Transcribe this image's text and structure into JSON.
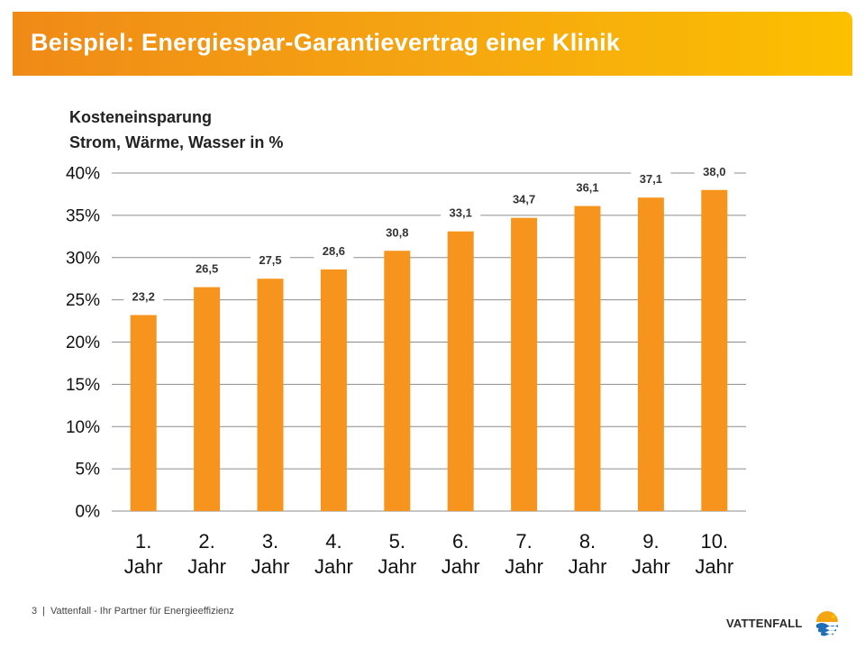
{
  "header": {
    "title": "Beispiel: Energiespar-Garantievertrag einer Klinik"
  },
  "subtitle": {
    "line1": "Kosteneinsparung",
    "line2": "Strom, Wärme, Wasser in %"
  },
  "chart_data": {
    "type": "bar",
    "categories": [
      [
        "1.",
        "Jahr"
      ],
      [
        "2.",
        "Jahr"
      ],
      [
        "3.",
        "Jahr"
      ],
      [
        "4.",
        "Jahr"
      ],
      [
        "5.",
        "Jahr"
      ],
      [
        "6.",
        "Jahr"
      ],
      [
        "7.",
        "Jahr"
      ],
      [
        "8.",
        "Jahr"
      ],
      [
        "9.",
        "Jahr"
      ],
      [
        "10.",
        "Jahr"
      ]
    ],
    "values": [
      23.2,
      26.5,
      27.5,
      28.6,
      30.8,
      33.1,
      34.7,
      36.1,
      37.1,
      38.0
    ],
    "data_labels": [
      "23,2",
      "26,5",
      "27,5",
      "28,6",
      "30,8",
      "33,1",
      "34,7",
      "36,1",
      "37,1",
      "38,0"
    ],
    "ylim": [
      0,
      40
    ],
    "yticks": [
      0,
      5,
      10,
      15,
      20,
      25,
      30,
      35,
      40
    ],
    "ytick_labels": [
      "0%",
      "5%",
      "10%",
      "15%",
      "20%",
      "25%",
      "30%",
      "35%",
      "40%"
    ],
    "grid": true,
    "bar_color": "#f7941d"
  },
  "footer": {
    "page_number": "3",
    "separator": "|",
    "text": "Vattenfall - Ihr Partner für Energieeffizienz"
  },
  "logo": {
    "text": "VATTENFALL",
    "icon": "vattenfall-logo-icon"
  },
  "colors": {
    "title_bar_start": "#f08a17",
    "title_bar_end": "#fcc000",
    "bar": "#f7941d",
    "gridline": "#8c8c8c"
  }
}
